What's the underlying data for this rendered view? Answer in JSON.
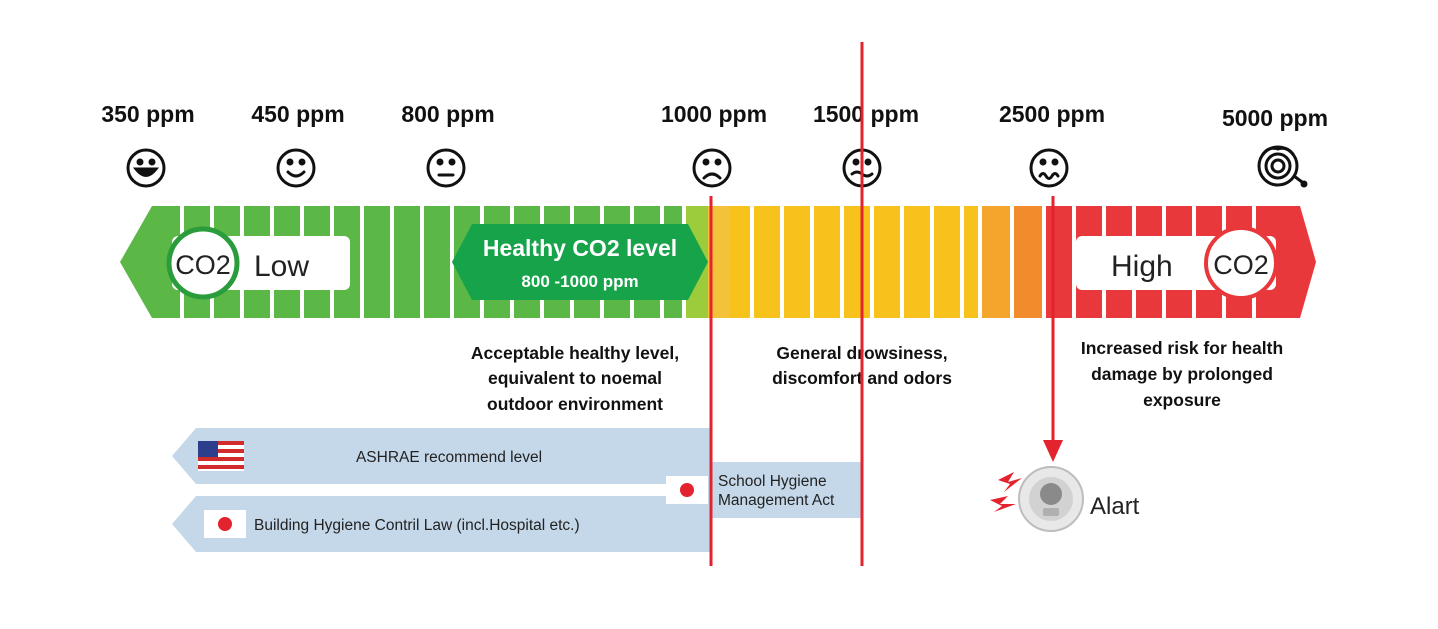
{
  "levels": [
    {
      "label": "350 ppm",
      "face": "big-smile"
    },
    {
      "label": "450 ppm",
      "face": "smile"
    },
    {
      "label": "800 ppm",
      "face": "neutral"
    },
    {
      "label": "1000 ppm",
      "face": "frown"
    },
    {
      "label": "1500 ppm",
      "face": "wavy-mouth"
    },
    {
      "label": "2500 ppm",
      "face": "sick"
    },
    {
      "label": "5000 ppm",
      "face": "dizzy"
    }
  ],
  "scale": {
    "low_co2": "CO2",
    "low_label": "Low",
    "high_label": "High",
    "high_co2": "CO2",
    "healthy_title": "Healthy CO2 level",
    "healthy_range": "800 -1000 ppm"
  },
  "descriptions": {
    "acceptable": [
      "Acceptable healthy level,",
      "equivalent to noemal",
      "outdoor environment"
    ],
    "drowsiness": [
      "General drowsiness,",
      "discomfort and odors"
    ],
    "risk": [
      "Increased risk for health",
      "damage by prolonged",
      "exposure"
    ]
  },
  "standards": {
    "ashrae": "ASHRAE recommend level",
    "building": "Building Hygiene Contril Law (incl.Hospital etc.)",
    "school": [
      "School Hygiene",
      "Management Act"
    ]
  },
  "alert_label": "Alart",
  "colors": {
    "green": "#5cb846",
    "dark_green": "#16a34a",
    "yellow": "#f7c21b",
    "orange": "#f08c2b",
    "red": "#e8383b",
    "marker_red": "#e3232d",
    "standard_blue": "#c5d8ea"
  }
}
